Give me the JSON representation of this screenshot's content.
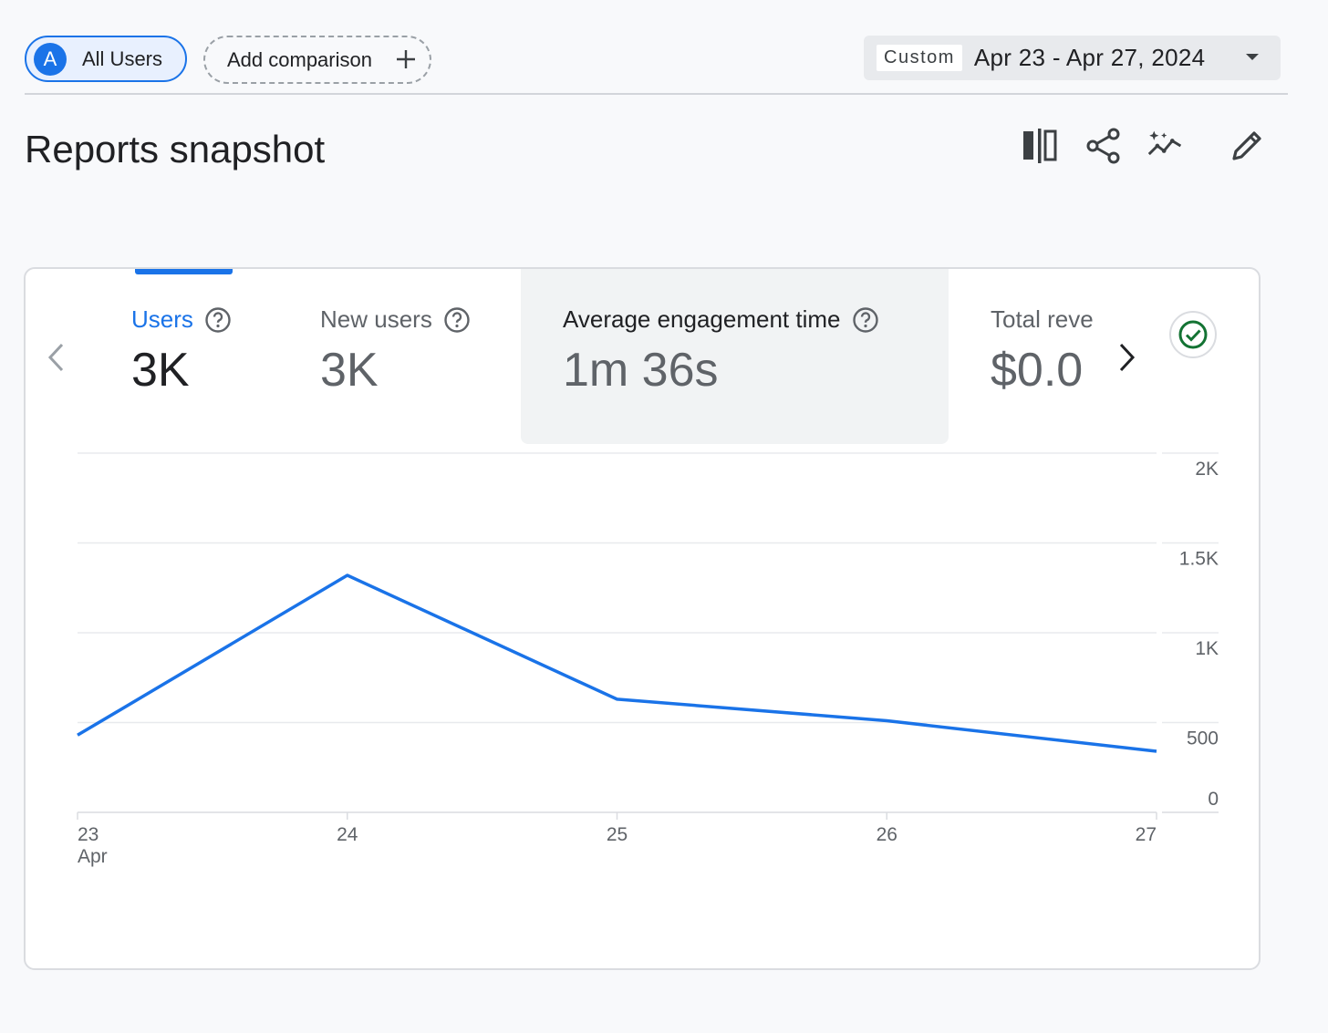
{
  "header": {
    "segment_avatar": "A",
    "segment_label": "All Users",
    "comparison_label": "Add comparison",
    "date_tag": "Custom",
    "date_range": "Apr 23 - Apr 27, 2024"
  },
  "title": "Reports snapshot",
  "icons": [
    "compare-columns-icon",
    "share-icon",
    "insights-sparkle-icon",
    "edit-pencil-icon"
  ],
  "metrics": [
    {
      "label": "Users",
      "value": "3K",
      "selected": true
    },
    {
      "label": "New users",
      "value": "3K"
    },
    {
      "label": "Average engagement time",
      "value": "1m 36s"
    },
    {
      "label": "Total reve",
      "value": "$0.0"
    }
  ],
  "colors": {
    "accent": "#1a73e8",
    "check": "#137333"
  },
  "chart_data": {
    "type": "line",
    "x": [
      "23",
      "24",
      "25",
      "26",
      "27"
    ],
    "x_sublabel": "Apr",
    "series": [
      {
        "values": [
          430,
          1320,
          630,
          510,
          340
        ]
      }
    ],
    "yticks": [
      "0",
      "500",
      "1K",
      "1.5K",
      "2K"
    ],
    "ytick_values": [
      0,
      500,
      1000,
      1500,
      2000
    ],
    "ylim": [
      0,
      2000
    ],
    "y_axis_side": "right",
    "grid": true
  }
}
